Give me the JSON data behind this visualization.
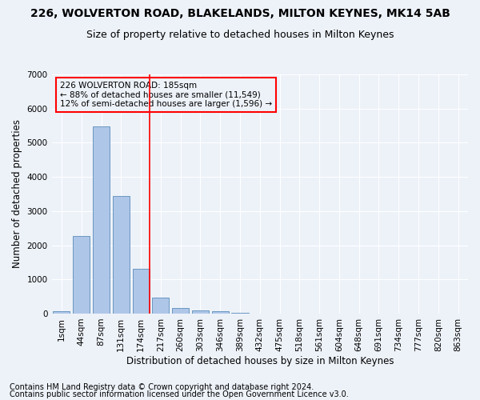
{
  "title1": "226, WOLVERTON ROAD, BLAKELANDS, MILTON KEYNES, MK14 5AB",
  "title2": "Size of property relative to detached houses in Milton Keynes",
  "xlabel": "Distribution of detached houses by size in Milton Keynes",
  "ylabel": "Number of detached properties",
  "footnote1": "Contains HM Land Registry data © Crown copyright and database right 2024.",
  "footnote2": "Contains public sector information licensed under the Open Government Licence v3.0.",
  "bar_labels": [
    "1sqm",
    "44sqm",
    "87sqm",
    "131sqm",
    "174sqm",
    "217sqm",
    "260sqm",
    "303sqm",
    "346sqm",
    "389sqm",
    "432sqm",
    "475sqm",
    "518sqm",
    "561sqm",
    "604sqm",
    "648sqm",
    "691sqm",
    "734sqm",
    "777sqm",
    "820sqm",
    "863sqm"
  ],
  "bar_values": [
    70,
    2280,
    5480,
    3450,
    1320,
    470,
    160,
    100,
    60,
    30,
    0,
    0,
    0,
    0,
    0,
    0,
    0,
    0,
    0,
    0,
    0
  ],
  "bar_color": "#aec6e8",
  "bar_edge_color": "#5b8db8",
  "ylim": [
    0,
    7000
  ],
  "yticks": [
    0,
    1000,
    2000,
    3000,
    4000,
    5000,
    6000,
    7000
  ],
  "property_label": "226 WOLVERTON ROAD: 185sqm",
  "annotation_line1": "← 88% of detached houses are smaller (11,549)",
  "annotation_line2": "12% of semi-detached houses are larger (1,596) →",
  "vline_x_index": 4.43,
  "bg_color": "#edf2f9",
  "grid_color": "#ffffff",
  "title1_fontsize": 10,
  "title2_fontsize": 9,
  "axis_label_fontsize": 8.5,
  "tick_fontsize": 7.5,
  "footnote_fontsize": 7
}
